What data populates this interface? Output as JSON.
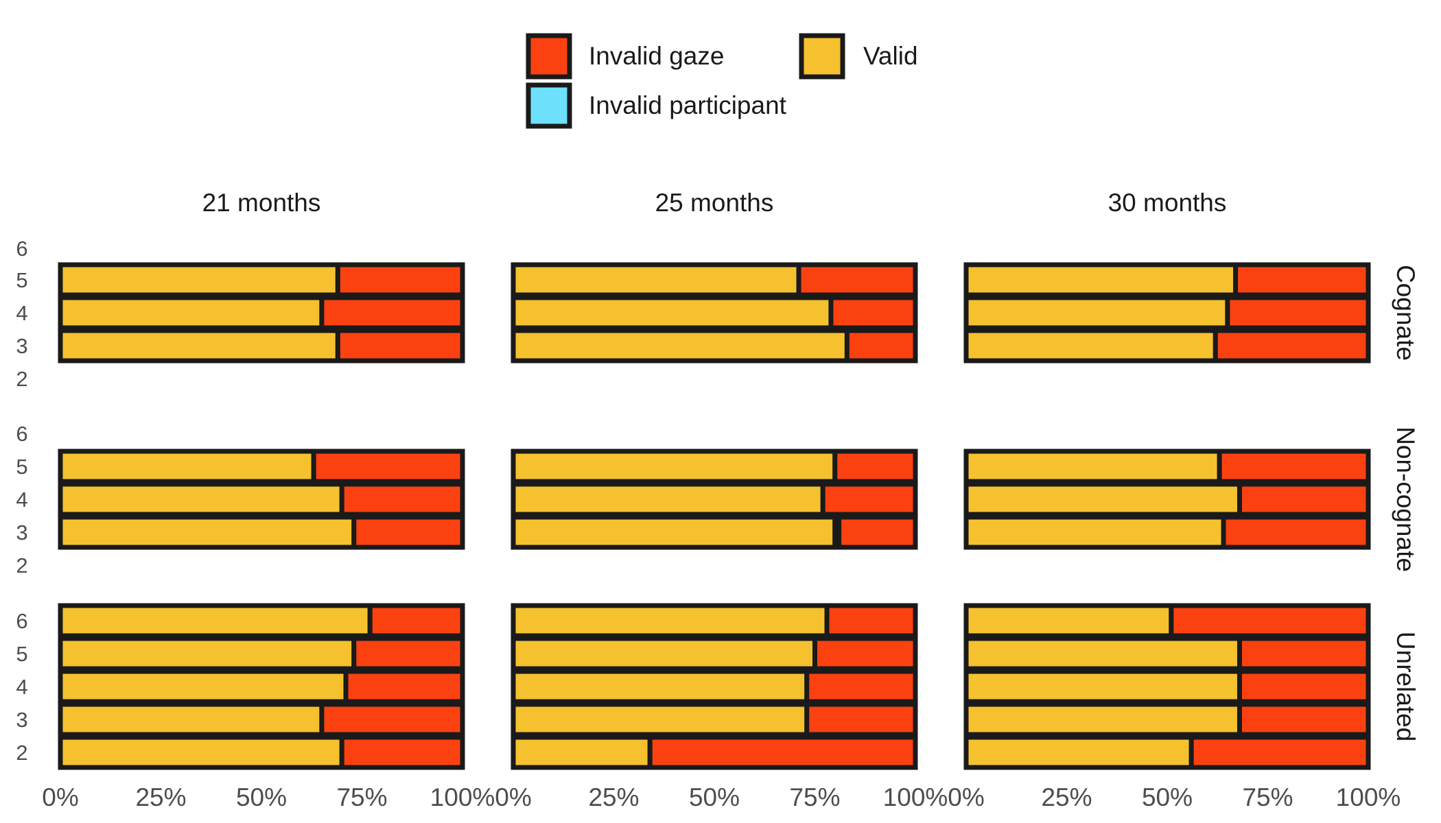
{
  "chart_data": {
    "type": "bar",
    "orientation": "horizontal",
    "stacked": true,
    "percent": true,
    "facet_columns": [
      "21 months",
      "25 months",
      "30 months"
    ],
    "facet_rows": [
      "Cognate",
      "Non-cognate",
      "Unrelated"
    ],
    "y_ticks": [
      "2",
      "3",
      "4",
      "5",
      "6"
    ],
    "x_ticks": [
      "0%",
      "25%",
      "50%",
      "75%",
      "100%"
    ],
    "xlim": [
      0,
      100
    ],
    "legend": {
      "position": "top",
      "items": [
        {
          "label": "Invalid gaze",
          "color": "#FC4111"
        },
        {
          "label": "Valid",
          "color": "#F5C12E"
        },
        {
          "label": "Invalid participant",
          "color": "#6DE0FC"
        }
      ]
    },
    "colors": {
      "valid": "#F5C12E",
      "invalid_gaze": "#FC4111",
      "invalid_participant": "#6DE0FC",
      "outline": "#1a1a1a"
    },
    "series_order": [
      "valid",
      "invalid_participant",
      "invalid_gaze"
    ],
    "panels": [
      {
        "row": "Cognate",
        "col": "21 months",
        "bars": [
          {
            "y": "5",
            "valid": 69,
            "invalid_participant": 0,
            "invalid_gaze": 31
          },
          {
            "y": "4",
            "valid": 65,
            "invalid_participant": 0,
            "invalid_gaze": 35
          },
          {
            "y": "3",
            "valid": 69,
            "invalid_participant": 0,
            "invalid_gaze": 31
          }
        ]
      },
      {
        "row": "Cognate",
        "col": "25 months",
        "bars": [
          {
            "y": "5",
            "valid": 71,
            "invalid_participant": 0,
            "invalid_gaze": 29
          },
          {
            "y": "4",
            "valid": 79,
            "invalid_participant": 0,
            "invalid_gaze": 21
          },
          {
            "y": "3",
            "valid": 83,
            "invalid_participant": 0,
            "invalid_gaze": 17
          }
        ]
      },
      {
        "row": "Cognate",
        "col": "30 months",
        "bars": [
          {
            "y": "5",
            "valid": 67,
            "invalid_participant": 0,
            "invalid_gaze": 33
          },
          {
            "y": "4",
            "valid": 65,
            "invalid_participant": 0,
            "invalid_gaze": 35
          },
          {
            "y": "3",
            "valid": 62,
            "invalid_participant": 0,
            "invalid_gaze": 38
          }
        ]
      },
      {
        "row": "Non-cognate",
        "col": "21 months",
        "bars": [
          {
            "y": "5",
            "valid": 63,
            "invalid_participant": 0,
            "invalid_gaze": 37
          },
          {
            "y": "4",
            "valid": 70,
            "invalid_participant": 0,
            "invalid_gaze": 30
          },
          {
            "y": "3",
            "valid": 73,
            "invalid_participant": 0,
            "invalid_gaze": 27
          }
        ]
      },
      {
        "row": "Non-cognate",
        "col": "25 months",
        "bars": [
          {
            "y": "5",
            "valid": 80,
            "invalid_participant": 0,
            "invalid_gaze": 20
          },
          {
            "y": "4",
            "valid": 77,
            "invalid_participant": 0,
            "invalid_gaze": 23
          },
          {
            "y": "3",
            "valid": 80,
            "invalid_participant": 1,
            "invalid_gaze": 19
          }
        ]
      },
      {
        "row": "Non-cognate",
        "col": "30 months",
        "bars": [
          {
            "y": "5",
            "valid": 63,
            "invalid_participant": 0,
            "invalid_gaze": 37
          },
          {
            "y": "4",
            "valid": 68,
            "invalid_participant": 0,
            "invalid_gaze": 32
          },
          {
            "y": "3",
            "valid": 64,
            "invalid_participant": 0,
            "invalid_gaze": 36
          }
        ]
      },
      {
        "row": "Unrelated",
        "col": "21 months",
        "bars": [
          {
            "y": "6",
            "valid": 77,
            "invalid_participant": 0,
            "invalid_gaze": 23
          },
          {
            "y": "5",
            "valid": 73,
            "invalid_participant": 0,
            "invalid_gaze": 27
          },
          {
            "y": "4",
            "valid": 71,
            "invalid_participant": 0,
            "invalid_gaze": 29
          },
          {
            "y": "3",
            "valid": 65,
            "invalid_participant": 0,
            "invalid_gaze": 35
          },
          {
            "y": "2",
            "valid": 70,
            "invalid_participant": 0,
            "invalid_gaze": 30
          }
        ]
      },
      {
        "row": "Unrelated",
        "col": "25 months",
        "bars": [
          {
            "y": "6",
            "valid": 78,
            "invalid_participant": 0,
            "invalid_gaze": 22
          },
          {
            "y": "5",
            "valid": 75,
            "invalid_participant": 0,
            "invalid_gaze": 25
          },
          {
            "y": "4",
            "valid": 73,
            "invalid_participant": 0,
            "invalid_gaze": 27
          },
          {
            "y": "3",
            "valid": 73,
            "invalid_participant": 0,
            "invalid_gaze": 27
          },
          {
            "y": "2",
            "valid": 34,
            "invalid_participant": 0,
            "invalid_gaze": 66
          }
        ]
      },
      {
        "row": "Unrelated",
        "col": "30 months",
        "bars": [
          {
            "y": "6",
            "valid": 51,
            "invalid_participant": 0,
            "invalid_gaze": 49
          },
          {
            "y": "5",
            "valid": 68,
            "invalid_participant": 0,
            "invalid_gaze": 32
          },
          {
            "y": "4",
            "valid": 68,
            "invalid_participant": 0,
            "invalid_gaze": 32
          },
          {
            "y": "3",
            "valid": 68,
            "invalid_participant": 0,
            "invalid_gaze": 32
          },
          {
            "y": "2",
            "valid": 56,
            "invalid_participant": 0,
            "invalid_gaze": 44
          }
        ]
      }
    ]
  }
}
